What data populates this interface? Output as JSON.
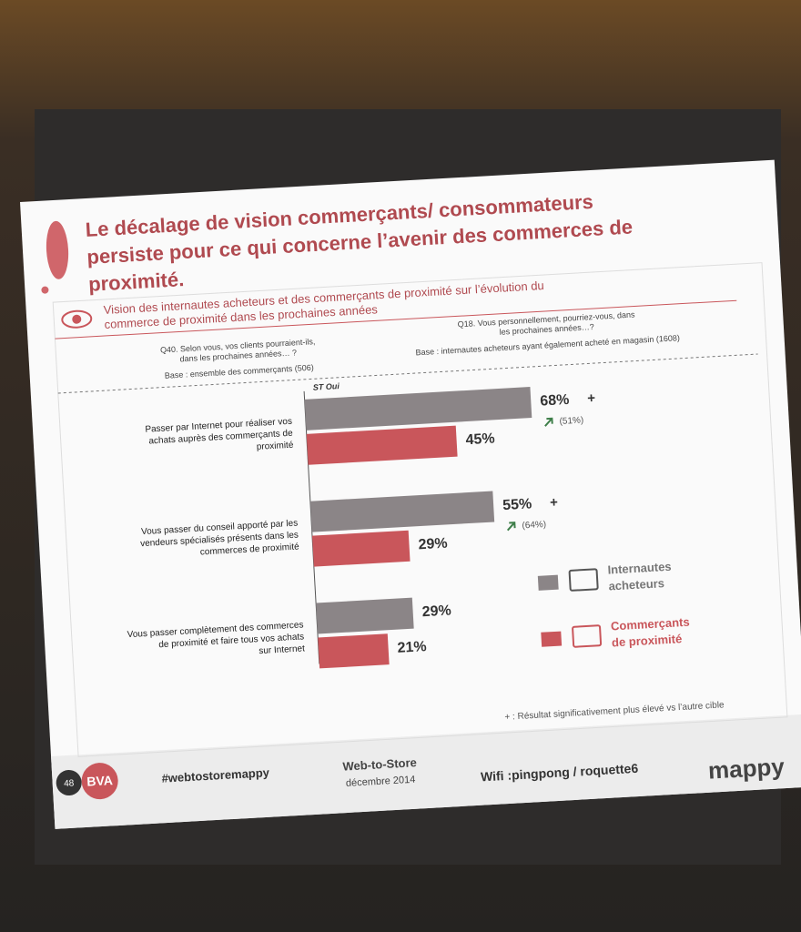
{
  "slide": {
    "title": "Le décalage de vision commerçants/ consommateurs persiste pour ce qui concerne l’avenir des commerces de proximité.",
    "subtitle": "Vision des internautes acheteurs et des commerçants de proximité sur l’évolution du commerce de proximité dans les prochaines années",
    "question_left": "Q40. Selon vous, vos clients pourraient-ils, dans les prochaines années… ?",
    "base_left": "Base : ensemble des commerçants (506)",
    "question_right": "Q18. Vous personnellement, pourriez-vous, dans les prochaines années…?",
    "base_right": "Base : internautes acheteurs ayant également acheté en magasin (1608)",
    "footnote": "+ : Résultat significativement plus élevé vs l’autre cible",
    "page_number": "48",
    "brand": "BVA",
    "hashtag": "#webtostoremappy",
    "event": "Web-to-Store",
    "date": "décembre 2014",
    "wifi": "Wifi :pingpong / roquette6",
    "logo": "mappy"
  },
  "chart_data": {
    "type": "bar",
    "orientation": "horizontal",
    "header": "ST Oui",
    "categories": [
      "Passer par Internet pour réaliser vos achats auprès des commerçants de proximité",
      "Vous passer du conseil apporté par les vendeurs spécialisés présents dans les commerces de proximité",
      "Vous passer complètement des commerces de proximité et faire tous vos achats sur Internet"
    ],
    "xlim": [
      0,
      100
    ],
    "series": [
      {
        "name": "Internautes acheteurs",
        "color": "#8b8587",
        "values": [
          68,
          55,
          29
        ],
        "value_labels": [
          "68%",
          "55%",
          "29%"
        ]
      },
      {
        "name": "Commerçants de proximité",
        "color": "#c9565b",
        "values": [
          45,
          29,
          21
        ],
        "value_labels": [
          "45%",
          "29%",
          "21%"
        ]
      }
    ],
    "annotations": [
      {
        "significance": "+",
        "previous": "(51%)"
      },
      {
        "significance": "+",
        "previous": "(64%)"
      }
    ]
  }
}
